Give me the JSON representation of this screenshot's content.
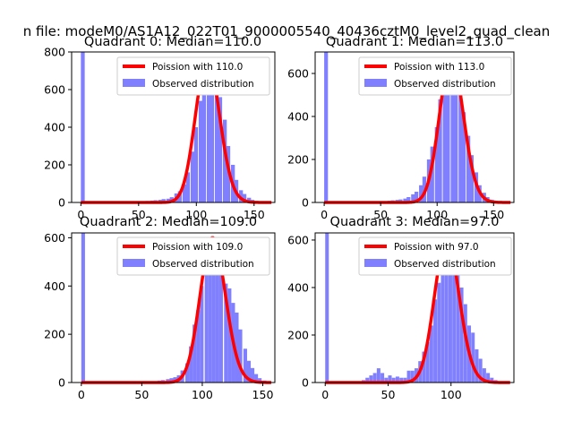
{
  "suptitle": "n file: modeM0/AS1A12_022T01_9000005540_40436cztM0_level2_quad_clean",
  "colors": {
    "bars": "#8080ff",
    "pdf": "#ff0000",
    "axis": "#000000"
  },
  "chart_data": [
    {
      "type": "bar",
      "title": "Quadrant 0: Median=110.0",
      "xlim": [
        -8,
        168
      ],
      "ylim": [
        0,
        800
      ],
      "xticks": [
        0,
        50,
        100,
        150
      ],
      "yticks": [
        0,
        200,
        400,
        600,
        800
      ],
      "legend": {
        "position": "top-right",
        "entries": [
          "Poission with 110.0",
          "Observed distribution"
        ]
      },
      "poisson_lambda": 110,
      "poisson_scale": 760,
      "bin_width": 3.5,
      "bins": [
        [
          0,
          800
        ],
        [
          56,
          8
        ],
        [
          60,
          10
        ],
        [
          63,
          12
        ],
        [
          67,
          14
        ],
        [
          70,
          18
        ],
        [
          74,
          20
        ],
        [
          77,
          28
        ],
        [
          81,
          48
        ],
        [
          84,
          60
        ],
        [
          88,
          95
        ],
        [
          91,
          160
        ],
        [
          95,
          270
        ],
        [
          98,
          400
        ],
        [
          102,
          540
        ],
        [
          105,
          670
        ],
        [
          109,
          740
        ],
        [
          112,
          760
        ],
        [
          116,
          620
        ],
        [
          119,
          560
        ],
        [
          123,
          440
        ],
        [
          126,
          300
        ],
        [
          130,
          200
        ],
        [
          133,
          120
        ],
        [
          137,
          65
        ],
        [
          140,
          45
        ],
        [
          144,
          25
        ],
        [
          147,
          14
        ],
        [
          151,
          8
        ],
        [
          154,
          5
        ],
        [
          158,
          3
        ]
      ]
    },
    {
      "type": "bar",
      "title": "Quadrant 1: Median=113.0",
      "xlim": [
        -8,
        168
      ],
      "ylim": [
        0,
        700
      ],
      "xticks": [
        0,
        50,
        100,
        150
      ],
      "yticks": [
        0,
        200,
        400,
        600
      ],
      "legend": {
        "position": "top-right",
        "entries": [
          "Poission with 113.0",
          "Observed distribution"
        ]
      },
      "poisson_lambda": 113,
      "poisson_scale": 670,
      "bin_width": 3.5,
      "bins": [
        [
          0,
          700
        ],
        [
          49,
          5
        ],
        [
          52,
          6
        ],
        [
          56,
          8
        ],
        [
          59,
          10
        ],
        [
          63,
          12
        ],
        [
          66,
          14
        ],
        [
          70,
          18
        ],
        [
          73,
          25
        ],
        [
          77,
          38
        ],
        [
          80,
          50
        ],
        [
          84,
          80
        ],
        [
          87,
          120
        ],
        [
          91,
          200
        ],
        [
          94,
          260
        ],
        [
          98,
          350
        ],
        [
          101,
          480
        ],
        [
          105,
          580
        ],
        [
          108,
          630
        ],
        [
          112,
          660
        ],
        [
          115,
          610
        ],
        [
          119,
          520
        ],
        [
          122,
          420
        ],
        [
          126,
          310
        ],
        [
          129,
          220
        ],
        [
          133,
          140
        ],
        [
          136,
          80
        ],
        [
          140,
          45
        ],
        [
          143,
          25
        ],
        [
          147,
          12
        ],
        [
          150,
          6
        ],
        [
          154,
          3
        ]
      ]
    },
    {
      "type": "bar",
      "title": "Quadrant 2: Median=109.0",
      "xlim": [
        -8,
        160
      ],
      "ylim": [
        0,
        620
      ],
      "xticks": [
        0,
        50,
        100,
        150
      ],
      "yticks": [
        0,
        200,
        400,
        600
      ],
      "legend": {
        "position": "top-right",
        "entries": [
          "Poission with 109.0",
          "Observed distribution"
        ]
      },
      "poisson_lambda": 109,
      "poisson_scale": 600,
      "bin_width": 3.2,
      "bins": [
        [
          0,
          620
        ],
        [
          60,
          5
        ],
        [
          63,
          8
        ],
        [
          66,
          10
        ],
        [
          70,
          14
        ],
        [
          73,
          18
        ],
        [
          76,
          22
        ],
        [
          79,
          30
        ],
        [
          82,
          50
        ],
        [
          86,
          80
        ],
        [
          89,
          150
        ],
        [
          92,
          240
        ],
        [
          95,
          300
        ],
        [
          98,
          400
        ],
        [
          102,
          520
        ],
        [
          105,
          560
        ],
        [
          108,
          540
        ],
        [
          111,
          560
        ],
        [
          114,
          470
        ],
        [
          118,
          410
        ],
        [
          121,
          390
        ],
        [
          124,
          330
        ],
        [
          127,
          290
        ],
        [
          130,
          220
        ],
        [
          134,
          140
        ],
        [
          137,
          90
        ],
        [
          140,
          60
        ],
        [
          143,
          35
        ],
        [
          146,
          18
        ],
        [
          150,
          8
        ]
      ]
    },
    {
      "type": "bar",
      "title": "Quadrant 3: Median=97.0",
      "xlim": [
        -8,
        150
      ],
      "ylim": [
        0,
        630
      ],
      "xticks": [
        0,
        50,
        100
      ],
      "yticks": [
        0,
        200,
        400,
        600
      ],
      "legend": {
        "position": "top-right",
        "entries": [
          "Poission with 97.0",
          "Observed distribution"
        ]
      },
      "poisson_lambda": 97,
      "poisson_scale": 600,
      "bin_width": 3.0,
      "bins": [
        [
          0,
          630
        ],
        [
          29,
          10
        ],
        [
          32,
          20
        ],
        [
          35,
          30
        ],
        [
          38,
          40
        ],
        [
          41,
          60
        ],
        [
          44,
          40
        ],
        [
          47,
          20
        ],
        [
          50,
          30
        ],
        [
          53,
          20
        ],
        [
          56,
          25
        ],
        [
          59,
          20
        ],
        [
          62,
          20
        ],
        [
          65,
          50
        ],
        [
          68,
          50
        ],
        [
          71,
          60
        ],
        [
          74,
          90
        ],
        [
          77,
          130
        ],
        [
          80,
          170
        ],
        [
          83,
          240
        ],
        [
          86,
          350
        ],
        [
          89,
          420
        ],
        [
          92,
          470
        ],
        [
          95,
          520
        ],
        [
          98,
          580
        ],
        [
          101,
          600
        ],
        [
          104,
          500
        ],
        [
          107,
          400
        ],
        [
          110,
          330
        ],
        [
          113,
          240
        ],
        [
          116,
          210
        ],
        [
          119,
          140
        ],
        [
          122,
          100
        ],
        [
          125,
          60
        ],
        [
          128,
          40
        ],
        [
          131,
          20
        ],
        [
          134,
          10
        ]
      ]
    }
  ]
}
